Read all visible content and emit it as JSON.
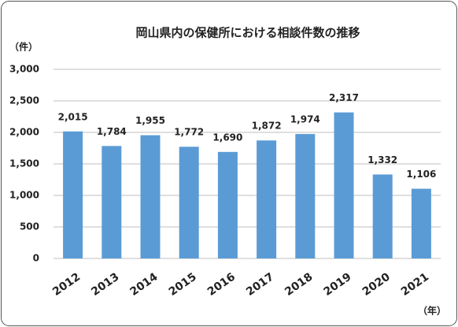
{
  "chart_data": {
    "type": "bar",
    "title": "岡山県内の保健所における相談件数の推移",
    "y_label": "（件）",
    "x_label": "（年）",
    "categories": [
      "2012",
      "2013",
      "2014",
      "2015",
      "2016",
      "2017",
      "2018",
      "2019",
      "2020",
      "2021"
    ],
    "values": [
      2015,
      1784,
      1955,
      1772,
      1690,
      1872,
      1974,
      2317,
      1332,
      1106
    ],
    "value_labels": [
      "2,015",
      "1,784",
      "1,955",
      "1,772",
      "1,690",
      "1,872",
      "1,974",
      "2,317",
      "1,332",
      "1,106"
    ],
    "color": "#5b9bd5",
    "ylim": [
      0,
      3000
    ],
    "yticks": [
      0,
      500,
      {
        "value": 1000,
        "label": "1,000"
      },
      {
        "value": 1500,
        "label": "1,500"
      },
      {
        "value": 2000,
        "label": "2,000"
      },
      {
        "value": 2500,
        "label": "2,500"
      },
      {
        "value": 3000,
        "label": "3,000"
      }
    ],
    "grid": true
  }
}
